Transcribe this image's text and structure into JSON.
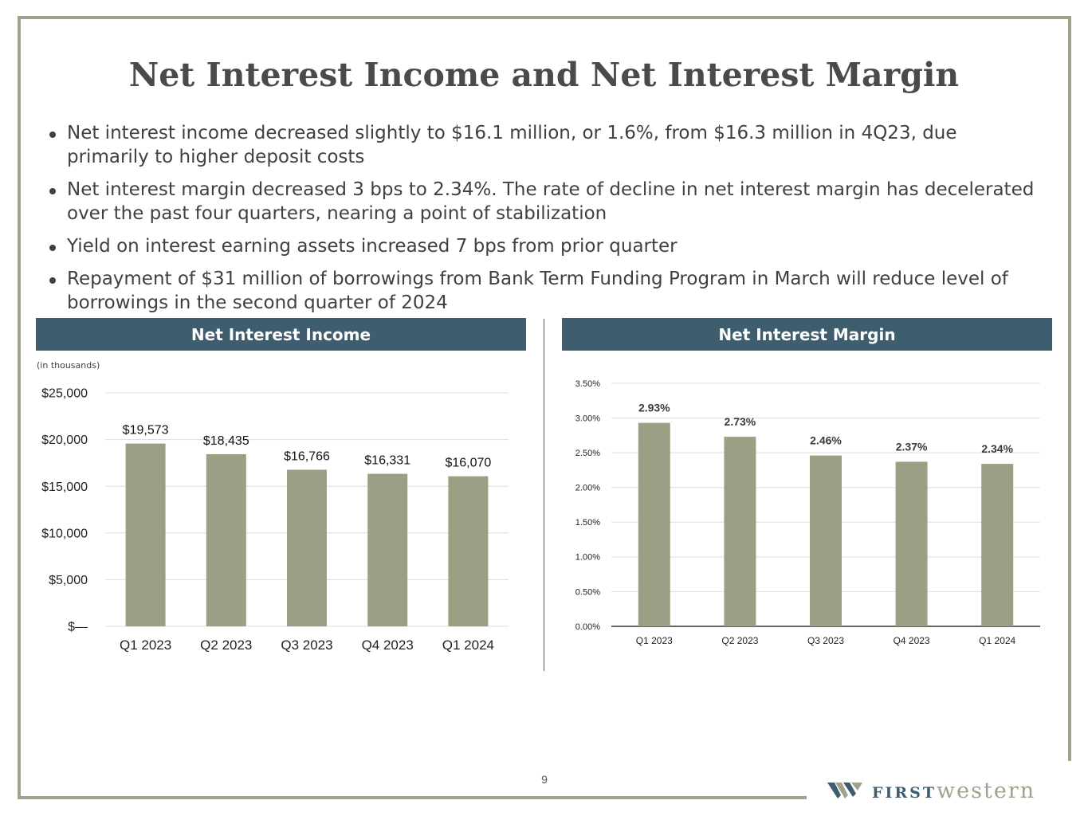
{
  "title": "Net Interest Income and Net Interest Margin",
  "bullets": [
    "Net interest income decreased slightly to $16.1 million, or 1.6%, from $16.3 million in 4Q23, due primarily to higher deposit costs",
    "Net interest margin decreased 3 bps to 2.34%. The rate of decline in net interest margin has decelerated over the past four quarters, nearing a point of stabilization",
    "Yield on interest earning assets increased 7 bps from prior quarter",
    "Repayment of $31 million of borrowings from Bank Term Funding Program in March will reduce level of borrowings in the second quarter of 2024"
  ],
  "left_panel": {
    "header": "Net Interest Income",
    "note": "(in thousands)"
  },
  "right_panel": {
    "header": "Net Interest Margin"
  },
  "colors": {
    "bar": "#9c9f84",
    "header": "#3e5d6f",
    "frame": "#9fa38b"
  },
  "chart_data": [
    {
      "type": "bar",
      "title": "Net Interest Income",
      "ylabel": "(in thousands)",
      "categories": [
        "Q1 2023",
        "Q2 2023",
        "Q3 2023",
        "Q4 2023",
        "Q1 2024"
      ],
      "values": [
        19573,
        18435,
        16766,
        16331,
        16070
      ],
      "value_labels": [
        "$19,573",
        "$18,435",
        "$16,766",
        "$16,331",
        "$16,070"
      ],
      "yticks": [
        0,
        5000,
        10000,
        15000,
        20000,
        25000
      ],
      "ytick_labels": [
        "$—",
        "$5,000",
        "$10,000",
        "$15,000",
        "$20,000",
        "$25,000"
      ],
      "ylim": [
        0,
        25000
      ],
      "grid": true
    },
    {
      "type": "bar",
      "title": "Net Interest Margin",
      "categories": [
        "Q1 2023",
        "Q2 2023",
        "Q3 2023",
        "Q4 2023",
        "Q1 2024"
      ],
      "values": [
        2.93,
        2.73,
        2.46,
        2.37,
        2.34
      ],
      "value_labels": [
        "2.93%",
        "2.73%",
        "2.46%",
        "2.37%",
        "2.34%"
      ],
      "yticks": [
        0,
        0.5,
        1.0,
        1.5,
        2.0,
        2.5,
        3.0,
        3.5
      ],
      "ytick_labels": [
        "0.00%",
        "0.50%",
        "1.00%",
        "1.50%",
        "2.00%",
        "2.50%",
        "3.00%",
        "3.50%"
      ],
      "ylim": [
        0,
        3.5
      ],
      "grid": true
    }
  ],
  "page_number": "9",
  "logo": {
    "first": "FIRST",
    "western": "western"
  }
}
